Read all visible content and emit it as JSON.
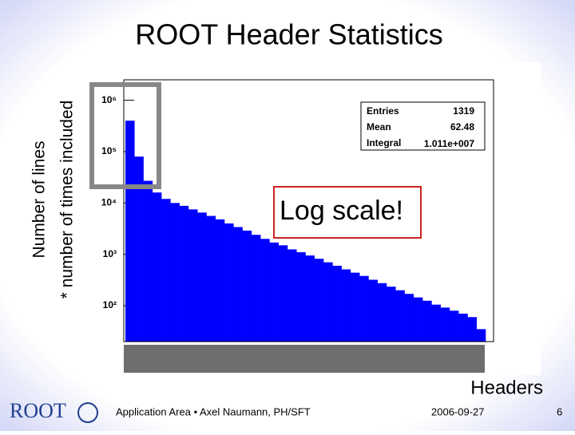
{
  "chart_data": {
    "type": "bar",
    "title": "ROOT Header Statistics",
    "y_label": [
      "Number of lines",
      "* number of times included"
    ],
    "x_label": "Headers",
    "log_y": true,
    "color": "#0000ff",
    "ylim": [
      20,
      2500000
    ],
    "yticks": [
      {
        "value": 100,
        "label": "10²"
      },
      {
        "value": 1000,
        "label": "10³"
      },
      {
        "value": 10000,
        "label": "10⁴"
      },
      {
        "value": 100000,
        "label": "10⁵"
      },
      {
        "value": 1000000,
        "label": "10⁶"
      }
    ],
    "categories": [
      null,
      null,
      null,
      null,
      null,
      null,
      null,
      null,
      null,
      null,
      null,
      null,
      null,
      null,
      null,
      null,
      null,
      null,
      null,
      null,
      null,
      null,
      null,
      null,
      null,
      null,
      null,
      null,
      null,
      null,
      null,
      null,
      null,
      null,
      null,
      null,
      null,
      null,
      null,
      null
    ],
    "values": [
      400000,
      80000,
      27000,
      16000,
      12000,
      10000,
      8800,
      7500,
      6500,
      5600,
      4800,
      4000,
      3400,
      2900,
      2400,
      2000,
      1700,
      1500,
      1250,
      1100,
      950,
      820,
      700,
      600,
      510,
      440,
      380,
      320,
      275,
      235,
      200,
      170,
      145,
      125,
      105,
      92,
      80,
      70,
      60,
      35
    ],
    "stats": {
      "labels": [
        "Entries",
        "Mean",
        "Integral"
      ],
      "entries": 1319,
      "mean": 62.48,
      "integral": {
        "value": 10110000,
        "label": "1.011e+007"
      }
    },
    "annotation": "Log scale!"
  },
  "footer": {
    "logo": "ROOT",
    "text": "Application Area • Axel Naumann, PH/SFT",
    "date": "2006-09-27",
    "page": "6"
  }
}
